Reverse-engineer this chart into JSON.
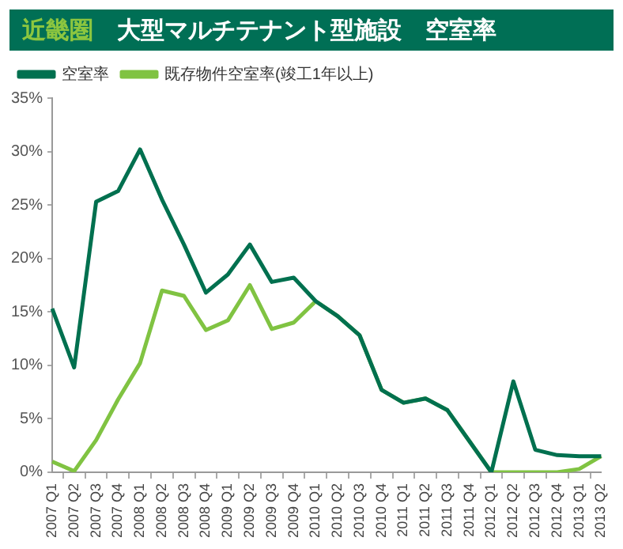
{
  "chart_data": {
    "type": "line",
    "title": "近畿圏　大型マルチテナント型施設　空室率",
    "categories": [
      "2007 Q1",
      "2007 Q2",
      "2007 Q3",
      "2007 Q4",
      "2008 Q1",
      "2008 Q2",
      "2008 Q3",
      "2008 Q4",
      "2009 Q1",
      "2009 Q2",
      "2009 Q3",
      "2009 Q4",
      "2010 Q1",
      "2010 Q2",
      "2010 Q3",
      "2010 Q4",
      "2011 Q1",
      "2011 Q2",
      "2011 Q3",
      "2011 Q4",
      "2012 Q1",
      "2012 Q2",
      "2012 Q3",
      "2012 Q4",
      "2013 Q1",
      "2013 Q2"
    ],
    "series": [
      {
        "name": "空室率",
        "color": "#00704f",
        "values": [
          15.3,
          9.8,
          25.3,
          26.3,
          30.2,
          25.5,
          21.3,
          16.8,
          18.5,
          21.3,
          17.8,
          18.2,
          16.0,
          14.6,
          12.8,
          7.7,
          6.5,
          6.9,
          5.8,
          2.9,
          0,
          8.5,
          2.1,
          1.6,
          1.5,
          1.5
        ]
      },
      {
        "name": "既存物件空室率(竣工1年以上)",
        "color": "#80c342",
        "values": [
          1.0,
          0.1,
          3.0,
          6.8,
          10.2,
          17.0,
          16.5,
          13.3,
          14.2,
          17.5,
          13.4,
          14.0,
          16.0,
          14.6,
          12.8,
          7.7,
          6.5,
          6.9,
          5.8,
          2.9,
          0,
          0,
          0,
          0,
          0.3,
          1.5
        ]
      }
    ],
    "ylim": [
      0,
      35
    ],
    "yticks": [
      {
        "value": 0,
        "label": "0%"
      },
      {
        "value": 5,
        "label": "5%"
      },
      {
        "value": 10,
        "label": "10%"
      },
      {
        "value": 15,
        "label": "15%"
      },
      {
        "value": 20,
        "label": "20%"
      },
      {
        "value": 25,
        "label": "25%"
      },
      {
        "value": 30,
        "label": "30%"
      },
      {
        "value": 35,
        "label": "35%"
      }
    ],
    "grid": false,
    "legend": "top left",
    "marker": "none",
    "line_style": "solid"
  }
}
